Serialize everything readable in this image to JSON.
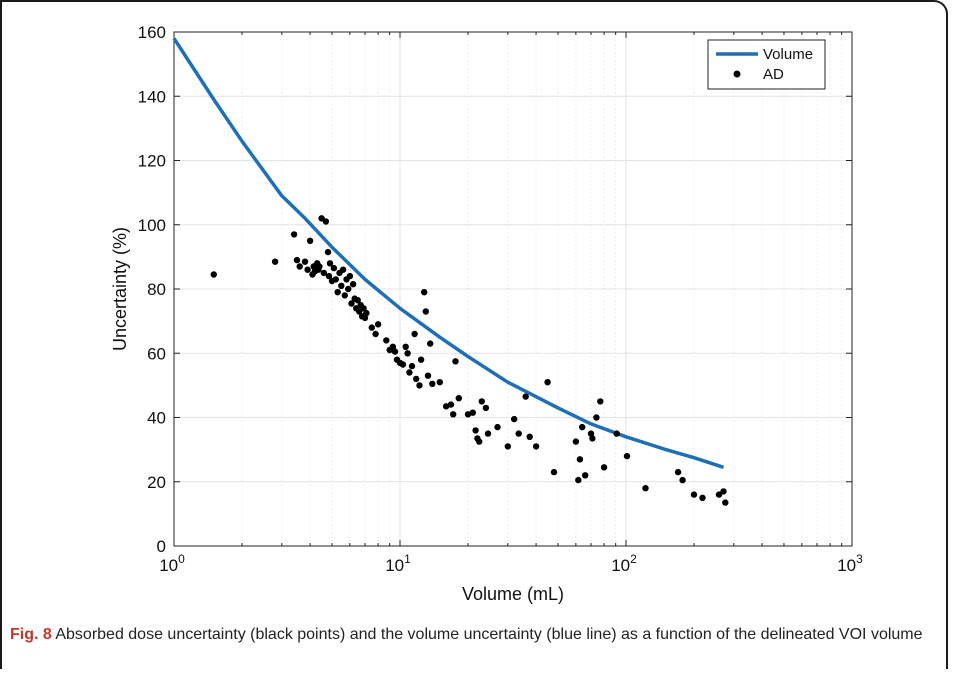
{
  "chart_data": {
    "type": "scatter",
    "xlabel": "Volume (mL)",
    "ylabel": "Uncertainty (%)",
    "xscale": "log",
    "xlim": [
      1,
      1000
    ],
    "ylim": [
      0,
      160
    ],
    "yticks": [
      0,
      20,
      40,
      60,
      80,
      100,
      120,
      140,
      160
    ],
    "xticks": [
      {
        "value": 1,
        "base": "10",
        "exp": "0"
      },
      {
        "value": 10,
        "base": "10",
        "exp": "1"
      },
      {
        "value": 100,
        "base": "10",
        "exp": "2"
      },
      {
        "value": 1000,
        "base": "10",
        "exp": "3"
      }
    ],
    "grid": true,
    "legend_position": "top-right",
    "series": [
      {
        "name": "Volume",
        "kind": "line",
        "color": "#1f6fb5",
        "points": [
          [
            1,
            158
          ],
          [
            1.5,
            139
          ],
          [
            2,
            126
          ],
          [
            3,
            109
          ],
          [
            3.8,
            102
          ],
          [
            5,
            93
          ],
          [
            7,
            83
          ],
          [
            10,
            74
          ],
          [
            15,
            65
          ],
          [
            20,
            59
          ],
          [
            30,
            51
          ],
          [
            50,
            43
          ],
          [
            70,
            38
          ],
          [
            100,
            34
          ],
          [
            150,
            30
          ],
          [
            200,
            27.5
          ],
          [
            270,
            24.5
          ]
        ]
      },
      {
        "name": "AD",
        "kind": "points",
        "color": "#000000",
        "points": [
          [
            1.5,
            84.5
          ],
          [
            2.8,
            88.5
          ],
          [
            3.4,
            97
          ],
          [
            3.5,
            89
          ],
          [
            3.6,
            87
          ],
          [
            3.8,
            88.5
          ],
          [
            3.9,
            86
          ],
          [
            4.0,
            95
          ],
          [
            4.1,
            84.5
          ],
          [
            4.15,
            87
          ],
          [
            4.2,
            85.5
          ],
          [
            4.3,
            88
          ],
          [
            4.35,
            86
          ],
          [
            4.4,
            87
          ],
          [
            4.5,
            102
          ],
          [
            4.6,
            85
          ],
          [
            4.7,
            101
          ],
          [
            4.8,
            91.5
          ],
          [
            4.85,
            84
          ],
          [
            4.9,
            88
          ],
          [
            5.0,
            82.5
          ],
          [
            5.1,
            86.5
          ],
          [
            5.2,
            83
          ],
          [
            5.3,
            79
          ],
          [
            5.4,
            85
          ],
          [
            5.5,
            81
          ],
          [
            5.6,
            86
          ],
          [
            5.7,
            78
          ],
          [
            5.8,
            83
          ],
          [
            5.9,
            80
          ],
          [
            6.0,
            84
          ],
          [
            6.1,
            75.5
          ],
          [
            6.2,
            81.5
          ],
          [
            6.3,
            77
          ],
          [
            6.4,
            74
          ],
          [
            6.5,
            76.5
          ],
          [
            6.6,
            73
          ],
          [
            6.7,
            75
          ],
          [
            6.8,
            71.5
          ],
          [
            6.9,
            74
          ],
          [
            7.0,
            71
          ],
          [
            7.1,
            72.5
          ],
          [
            7.5,
            68
          ],
          [
            7.8,
            66
          ],
          [
            8.0,
            69
          ],
          [
            8.7,
            64
          ],
          [
            9.0,
            61
          ],
          [
            9.3,
            62
          ],
          [
            9.5,
            60.5
          ],
          [
            9.7,
            58
          ],
          [
            10.0,
            57
          ],
          [
            10.3,
            56.5
          ],
          [
            10.6,
            62
          ],
          [
            10.8,
            60
          ],
          [
            11.0,
            54
          ],
          [
            11.3,
            56
          ],
          [
            11.6,
            66
          ],
          [
            11.8,
            52
          ],
          [
            12.2,
            50
          ],
          [
            12.4,
            58
          ],
          [
            12.8,
            79
          ],
          [
            13.0,
            73
          ],
          [
            13.3,
            53
          ],
          [
            13.6,
            63
          ],
          [
            13.9,
            50.5
          ],
          [
            15.0,
            51
          ],
          [
            16.0,
            43.5
          ],
          [
            16.8,
            44
          ],
          [
            17.2,
            41
          ],
          [
            17.6,
            57.5
          ],
          [
            18.2,
            46
          ],
          [
            20.0,
            41
          ],
          [
            21.0,
            41.5
          ],
          [
            21.6,
            36
          ],
          [
            22.0,
            33.5
          ],
          [
            22.4,
            32.5
          ],
          [
            23.0,
            45
          ],
          [
            24.0,
            43
          ],
          [
            24.5,
            35
          ],
          [
            27.0,
            37
          ],
          [
            30.0,
            31
          ],
          [
            32.0,
            39.5
          ],
          [
            33.5,
            35
          ],
          [
            36.0,
            46.5
          ],
          [
            37.5,
            34
          ],
          [
            40.0,
            31
          ],
          [
            45.0,
            51
          ],
          [
            48.0,
            23
          ],
          [
            60.0,
            32.5
          ],
          [
            61.5,
            20.5
          ],
          [
            62.5,
            27
          ],
          [
            64.0,
            37
          ],
          [
            66.0,
            22
          ],
          [
            70.0,
            35
          ],
          [
            71.0,
            33.5
          ],
          [
            74.0,
            40
          ],
          [
            77.0,
            45
          ],
          [
            80.0,
            24.5
          ],
          [
            91.0,
            35
          ],
          [
            101.0,
            28
          ],
          [
            122.0,
            18
          ],
          [
            170.0,
            23
          ],
          [
            178.0,
            20.5
          ],
          [
            200.0,
            16
          ],
          [
            218.0,
            15
          ],
          [
            258.0,
            16
          ],
          [
            270.0,
            17
          ],
          [
            275.0,
            13.5
          ]
        ]
      }
    ]
  },
  "caption": {
    "label": "Fig. 8",
    "text": " Absorbed dose uncertainty (black points) and the volume uncertainty (blue line) as a function of the delineated VOI volume"
  }
}
